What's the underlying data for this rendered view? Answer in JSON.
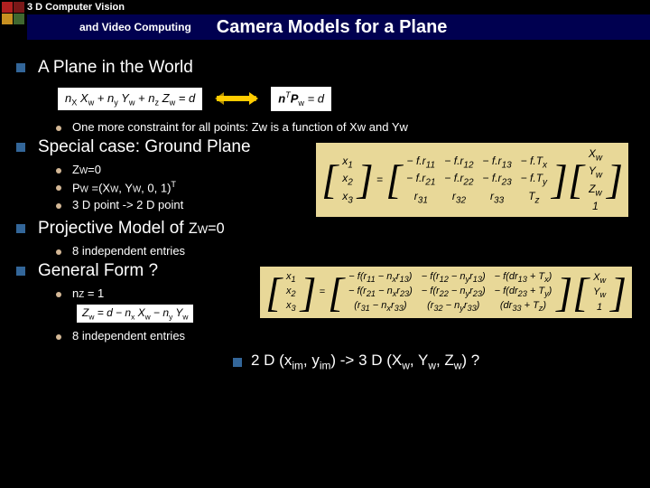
{
  "header": {
    "line1": "3 D Computer Vision",
    "line2": "and Video Computing",
    "title": "Camera Models for a Plane",
    "corner_colors": [
      "#b02020",
      "#7a1818",
      "#c89020",
      "#406830"
    ]
  },
  "sections": [
    {
      "title": "A Plane in the World",
      "eq_left_html": "n<span class='sub'>X</span> X<span class='sub'>w</span> + n<span class='sub'>y</span> Y<span class='sub'>w</span> + n<span class='sub'>z</span> Z<span class='sub'>w</span> = d",
      "eq_right_html": "<b>n</b><span class='sup'>T</span><b>P</b><span class='sub'>w</span> = <i>d</i>",
      "sub": [
        "One more constraint for all points:  Zw is a function of Xw and Yw"
      ]
    },
    {
      "title": "Special case: Ground Plane",
      "sub_html": [
        "Z<span class='smcap'>W</span>=0",
        "P<span class='smcap'>W</span> =(X<span class='smcap'>W</span>, Y<span class='smcap'>W</span>, 0, 1)<span class='sup'>T</span>",
        "3 D point -> 2 D point"
      ],
      "matrix": {
        "lhs": [
          "x<sub>1</sub>",
          "x<sub>2</sub>",
          "x<sub>3</sub>"
        ],
        "rhs_rows": [
          [
            "− f.r<sub>11</sub>",
            "− f.r<sub>12</sub>",
            "− f.r<sub>13</sub>",
            "− f.T<sub>x</sub>"
          ],
          [
            "− f.r<sub>21</sub>",
            "− f.r<sub>22</sub>",
            "− f.r<sub>23</sub>",
            "− f.T<sub>y</sub>"
          ],
          [
            "r<sub>31</sub>",
            "r<sub>32</sub>",
            "r<sub>33</sub>",
            "T<sub>z</sub>"
          ]
        ],
        "vec": [
          "X<sub>w</sub>",
          "Y<sub>w</sub>",
          "Z<sub>w</sub>",
          "1"
        ],
        "bg": "#e8d898"
      }
    },
    {
      "title_html": "Projective Model of <span style='font-size:0.85em'>Z<span class=\"smcap\">W</span>=0</span>",
      "sub": [
        "8 independent entries"
      ]
    },
    {
      "title": "General Form ?",
      "sub_html": [
        "n<span class='smcap'>Z</span> = 1",
        "8 independent entries"
      ],
      "inline_eq_html": "Z<span class='sub'>w</span> = d − n<span class='sub'>x</span> X<span class='sub'>w</span> − n<span class='sub'>y</span> Y<span class='sub'>w</span>",
      "matrix": {
        "lhs": [
          "x<sub>1</sub>",
          "x<sub>2</sub>",
          "x<sub>3</sub>"
        ],
        "rhs_rows": [
          [
            "− f(r<sub>11</sub> − n<sub>x</sub>r<sub>13</sub>)",
            "− f(r<sub>12</sub> − n<sub>y</sub>r<sub>13</sub>)",
            "− f(dr<sub>13</sub> + T<sub>x</sub>)"
          ],
          [
            "− f(r<sub>21</sub> − n<sub>x</sub>r<sub>23</sub>)",
            "− f(r<sub>22</sub> − n<sub>y</sub>r<sub>23</sub>)",
            "− f(dr<sub>23</sub> + T<sub>y</sub>)"
          ],
          [
            "(r<sub>31</sub> − n<sub>x</sub>r<sub>33</sub>)",
            "(r<sub>32</sub> − n<sub>y</sub>r<sub>33</sub>)",
            "(dr<sub>33</sub> + T<sub>z</sub>)"
          ]
        ],
        "vec": [
          "X<sub>w</sub>",
          "Y<sub>w</sub>",
          "1"
        ],
        "bg": "#e8d898"
      }
    }
  ],
  "footer_html": "2 D (x<span class='sub'>im</span>, y<span class='sub'>im</span>) -> 3 D  (X<span class='sub'>w</span>, Y<span class='sub'>w</span>, Z<span class='sub'>w</span>) ?"
}
